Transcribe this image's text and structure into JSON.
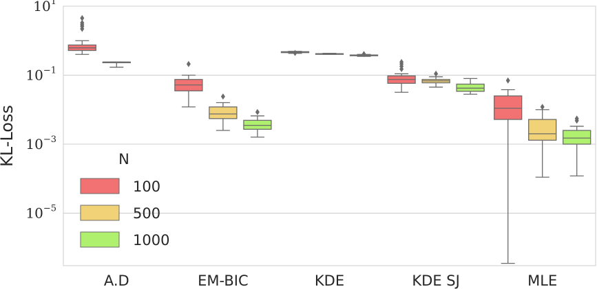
{
  "chart_data": {
    "type": "box",
    "title": "",
    "xlabel": "",
    "ylabel": "KL-Loss",
    "yscale": "log",
    "ylim": [
      3e-07,
      10
    ],
    "grid": true,
    "categories": [
      "A.D",
      "EM-BIC",
      "KDE",
      "KDE SJ",
      "MLE"
    ],
    "legend": {
      "title": "N",
      "placement": "center-left",
      "entries": [
        {
          "label": "100",
          "color": "#f27173"
        },
        {
          "label": "500",
          "color": "#f1d276"
        },
        {
          "label": "1000",
          "color": "#aff06f"
        }
      ]
    },
    "y_ticks": [
      {
        "value": 10,
        "base": "10",
        "exp": "1"
      },
      {
        "value": 0.1,
        "base": "10",
        "exp": "−1"
      },
      {
        "value": 0.001,
        "base": "10",
        "exp": "−3"
      },
      {
        "value": 1e-05,
        "base": "10",
        "exp": "−5"
      }
    ],
    "series": [
      {
        "name": "100",
        "color": "#f27173",
        "boxes": [
          {
            "category": "A.D",
            "whislo": 0.4,
            "q1": 0.52,
            "med": 0.62,
            "q3": 0.75,
            "whishi": 1.0,
            "fliers": [
              2.2,
              2.6,
              2.9,
              3.3,
              4.5
            ]
          },
          {
            "category": "EM-BIC",
            "whislo": 0.012,
            "q1": 0.035,
            "med": 0.052,
            "q3": 0.075,
            "whishi": 0.1,
            "fliers": [
              0.21
            ]
          },
          {
            "category": "KDE",
            "whislo": 0.43,
            "q1": 0.45,
            "med": 0.46,
            "q3": 0.48,
            "whishi": 0.49,
            "fliers": [
              0.44
            ]
          },
          {
            "category": "KDE SJ",
            "whislo": 0.032,
            "q1": 0.058,
            "med": 0.075,
            "q3": 0.095,
            "whishi": 0.11,
            "fliers": [
              0.15,
              0.18,
              0.21,
              0.24
            ]
          },
          {
            "category": "MLE",
            "whislo": 3.5e-07,
            "q1": 0.0052,
            "med": 0.011,
            "q3": 0.025,
            "whishi": 0.038,
            "fliers": [
              0.07
            ]
          }
        ]
      },
      {
        "name": "500",
        "color": "#f1d276",
        "boxes": [
          {
            "category": "A.D",
            "whislo": 0.17,
            "q1": 0.24,
            "med": 0.24,
            "q3": 0.24,
            "whishi": 0.24,
            "fliers": []
          },
          {
            "category": "EM-BIC",
            "whislo": 0.0025,
            "q1": 0.0055,
            "med": 0.0075,
            "q3": 0.012,
            "whishi": 0.016,
            "fliers": [
              0.024
            ]
          },
          {
            "category": "KDE",
            "whislo": 0.4,
            "q1": 0.41,
            "med": 0.415,
            "q3": 0.42,
            "whishi": 0.43,
            "fliers": []
          },
          {
            "category": "KDE SJ",
            "whislo": 0.045,
            "q1": 0.06,
            "med": 0.068,
            "q3": 0.075,
            "whishi": 0.09,
            "fliers": [
              0.11
            ]
          },
          {
            "category": "MLE",
            "whislo": 0.00011,
            "q1": 0.0013,
            "med": 0.002,
            "q3": 0.0052,
            "whishi": 0.01,
            "fliers": [
              0.012
            ]
          }
        ]
      },
      {
        "name": "1000",
        "color": "#aff06f",
        "boxes": [
          {
            "category": "EM-BIC",
            "whislo": 0.0016,
            "q1": 0.0027,
            "med": 0.0035,
            "q3": 0.0049,
            "whishi": 0.0066,
            "fliers": [
              0.0085
            ]
          },
          {
            "category": "KDE",
            "whislo": 0.35,
            "q1": 0.365,
            "med": 0.375,
            "q3": 0.385,
            "whishi": 0.4,
            "fliers": [
              0.41
            ]
          },
          {
            "category": "KDE SJ",
            "whislo": 0.028,
            "q1": 0.034,
            "med": 0.042,
            "q3": 0.055,
            "whishi": 0.08,
            "fliers": []
          },
          {
            "category": "MLE",
            "whislo": 0.00012,
            "q1": 0.001,
            "med": 0.0015,
            "q3": 0.0025,
            "whishi": 0.0033,
            "fliers": [
              0.0048,
              0.0055
            ]
          }
        ]
      }
    ]
  }
}
